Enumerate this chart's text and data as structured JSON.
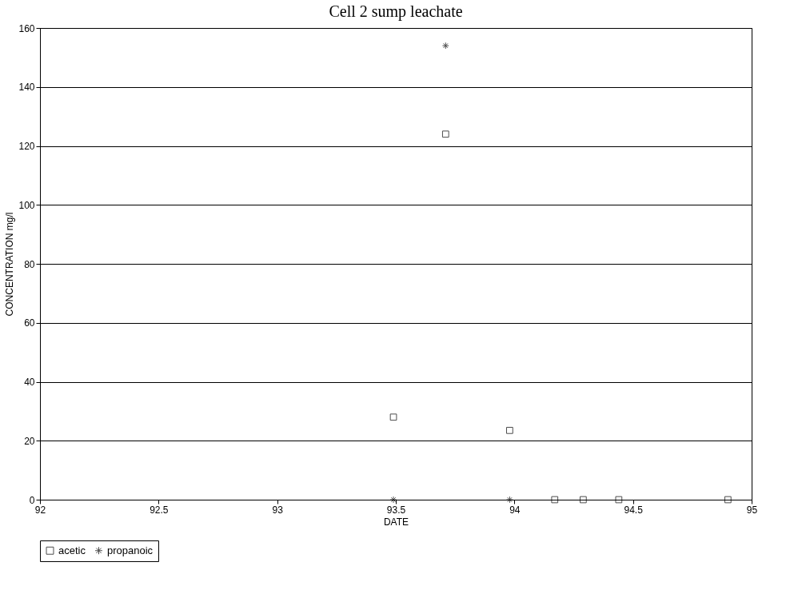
{
  "chart_data": {
    "type": "scatter",
    "title": "Cell 2 sump leachate",
    "xlabel": "DATE",
    "ylabel": "CONCENTRATION mg/l",
    "xlim": [
      92,
      95
    ],
    "xticks": [
      92,
      92.5,
      93,
      93.5,
      94,
      94.5,
      95
    ],
    "ylim": [
      0,
      160
    ],
    "yticks": [
      0,
      20,
      40,
      60,
      80,
      100,
      120,
      140,
      160
    ],
    "grid": "y",
    "legend": "bottom",
    "series": [
      {
        "name": "acetic",
        "color": "#000000",
        "marker": "square",
        "x": [
          93.49,
          93.71,
          93.98,
          94.17,
          94.29,
          94.44,
          94.9
        ],
        "values": [
          28,
          124,
          23.5,
          0,
          0,
          0,
          0
        ]
      },
      {
        "name": "propanoic",
        "color": "#000000",
        "marker": "cross",
        "x": [
          93.49,
          93.71,
          93.98
        ],
        "values": [
          0,
          154,
          0
        ]
      }
    ]
  }
}
